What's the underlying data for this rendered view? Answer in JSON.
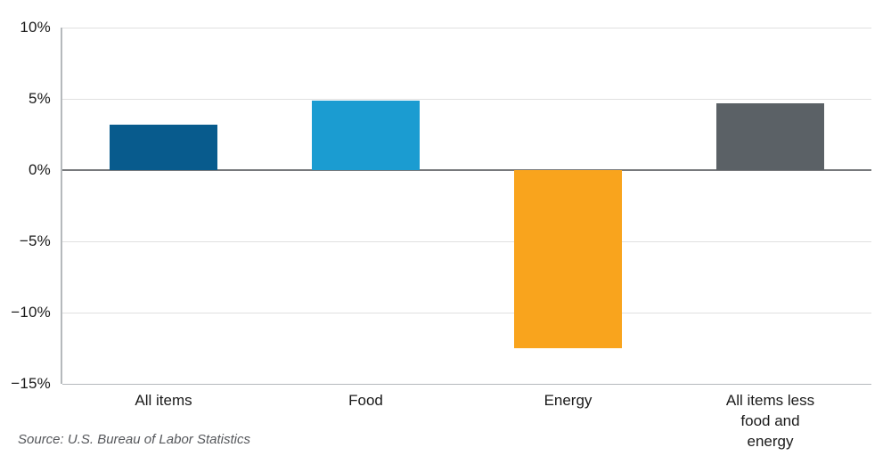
{
  "chart_data": {
    "type": "bar",
    "categories": [
      "All items",
      "Food",
      "Energy",
      "All items less\nfood and energy"
    ],
    "values": [
      3.2,
      4.9,
      -12.5,
      4.7
    ],
    "bar_colors": [
      "#085b8d",
      "#1b9cd1",
      "#f9a41d",
      "#5b6166"
    ],
    "yticks": [
      10,
      5,
      0,
      -5,
      -10,
      -15
    ],
    "ytick_labels": [
      "10%",
      "5%",
      "0%",
      "−5%",
      "−10%",
      "−15%"
    ],
    "ylim": [
      -15,
      10
    ],
    "grid": true,
    "legend_position": "none",
    "title": "",
    "xlabel": "",
    "ylabel": "",
    "source": "Source: U.S. Bureau of Labor Statistics"
  },
  "colors": {
    "background": "#ffffff",
    "gridline": "#e0e0e0",
    "zero_line": "#77797c",
    "axis_line": "#b5b9bc",
    "text": "#1a1a1a",
    "source_text": "#55575b"
  }
}
